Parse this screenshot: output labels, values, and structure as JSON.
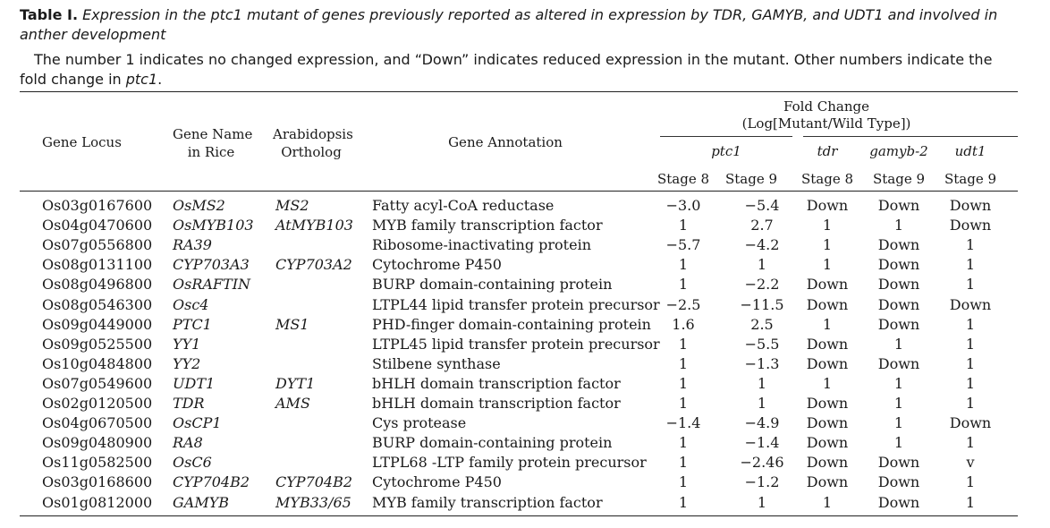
{
  "caption": {
    "label": "Table I.",
    "title": "Expression in the ptc1 mutant of genes previously reported as altered in expression by TDR, GAMYB, and UDT1 and involved in anther development",
    "note_main": "The number 1 indicates no changed expression, and “Down” indicates reduced expression in the mutant. Other numbers indicate the fold change in ",
    "note_italic": "ptc1",
    "note_end": "."
  },
  "header": {
    "gene_locus": "Gene Locus",
    "gene_name_line1": "Gene Name",
    "gene_name_line2": "in Rice",
    "ortholog_line1": "Arabidopsis",
    "ortholog_line2": "Ortholog",
    "annotation": "Gene Annotation",
    "fold_line1": "Fold Change",
    "fold_line2": "(Log[Mutant/Wild Type])",
    "ptc1": "ptc1",
    "tdr": "tdr",
    "gamyb2": "gamyb-2",
    "udt1": "udt1",
    "stage_ptc1_a": "Stage 8",
    "stage_ptc1_b": "Stage 9",
    "stage_tdr": "Stage 8",
    "stage_gamyb": "Stage 9",
    "stage_udt1": "Stage 9"
  },
  "rows": [
    {
      "locus": "Os03g0167600",
      "name": "OsMS2",
      "ortholog": "MS2",
      "annotation": "Fatty acyl-CoA reductase",
      "ptc1_s8": "−3.0",
      "ptc1_s9": "−5.4",
      "tdr": "Down",
      "gamyb": "Down",
      "udt1": "Down"
    },
    {
      "locus": "Os04g0470600",
      "name": "OsMYB103",
      "ortholog": "AtMYB103",
      "annotation": "MYB family transcription factor",
      "ptc1_s8": "1",
      "ptc1_s9": "2.7",
      "tdr": "1",
      "gamyb": "1",
      "udt1": "Down"
    },
    {
      "locus": "Os07g0556800",
      "name": "RA39",
      "ortholog": "",
      "annotation": "Ribosome-inactivating protein",
      "ptc1_s8": "−5.7",
      "ptc1_s9": "−4.2",
      "tdr": "1",
      "gamyb": "Down",
      "udt1": "1"
    },
    {
      "locus": "Os08g0131100",
      "name": "CYP703A3",
      "ortholog": "CYP703A2",
      "annotation": "Cytochrome P450",
      "ptc1_s8": "1",
      "ptc1_s9": "1",
      "tdr": "1",
      "gamyb": "Down",
      "udt1": "1"
    },
    {
      "locus": "Os08g0496800",
      "name": "OsRAFTIN",
      "ortholog": "",
      "annotation": "BURP domain-containing protein",
      "ptc1_s8": "1",
      "ptc1_s9": "−2.2",
      "tdr": "Down",
      "gamyb": "Down",
      "udt1": "1"
    },
    {
      "locus": "Os08g0546300",
      "name": "Osc4",
      "ortholog": "",
      "annotation": "LTPL44 lipid transfer protein precursor",
      "ptc1_s8": "−2.5",
      "ptc1_s9": "−11.5",
      "tdr": "Down",
      "gamyb": "Down",
      "udt1": "Down"
    },
    {
      "locus": "Os09g0449000",
      "name": "PTC1",
      "ortholog": "MS1",
      "annotation": "PHD-finger domain-containing protein",
      "ptc1_s8": "1.6",
      "ptc1_s9": "2.5",
      "tdr": "1",
      "gamyb": "Down",
      "udt1": "1"
    },
    {
      "locus": "Os09g0525500",
      "name": "YY1",
      "ortholog": "",
      "annotation": "LTPL45 lipid transfer protein precursor",
      "ptc1_s8": "1",
      "ptc1_s9": "−5.5",
      "tdr": "Down",
      "gamyb": "1",
      "udt1": "1"
    },
    {
      "locus": "Os10g0484800",
      "name": "YY2",
      "ortholog": "",
      "annotation": "Stilbene synthase",
      "ptc1_s8": "1",
      "ptc1_s9": "−1.3",
      "tdr": "Down",
      "gamyb": "Down",
      "udt1": "1"
    },
    {
      "locus": "Os07g0549600",
      "name": "UDT1",
      "ortholog": "DYT1",
      "annotation": "bHLH domain transcription factor",
      "ptc1_s8": "1",
      "ptc1_s9": "1",
      "tdr": "1",
      "gamyb": "1",
      "udt1": "1"
    },
    {
      "locus": "Os02g0120500",
      "name": "TDR",
      "ortholog": "AMS",
      "annotation": "bHLH domain transcription factor",
      "ptc1_s8": "1",
      "ptc1_s9": "1",
      "tdr": "Down",
      "gamyb": "1",
      "udt1": "1"
    },
    {
      "locus": "Os04g0670500",
      "name": "OsCP1",
      "ortholog": "",
      "annotation": "Cys protease",
      "ptc1_s8": "−1.4",
      "ptc1_s9": "−4.9",
      "tdr": "Down",
      "gamyb": "1",
      "udt1": "Down"
    },
    {
      "locus": "Os09g0480900",
      "name": "RA8",
      "ortholog": "",
      "annotation": "BURP domain-containing protein",
      "ptc1_s8": "1",
      "ptc1_s9": "−1.4",
      "tdr": "Down",
      "gamyb": "1",
      "udt1": "1"
    },
    {
      "locus": "Os11g0582500",
      "name": "OsC6",
      "ortholog": "",
      "annotation": "LTPL68 -LTP family protein precursor",
      "ptc1_s8": "1",
      "ptc1_s9": "−2.46",
      "tdr": "Down",
      "gamyb": "Down",
      "udt1": "v"
    },
    {
      "locus": "Os03g0168600",
      "name": "CYP704B2",
      "ortholog": "CYP704B2",
      "annotation": "Cytochrome P450",
      "ptc1_s8": "1",
      "ptc1_s9": "−1.2",
      "tdr": "Down",
      "gamyb": "Down",
      "udt1": "1"
    },
    {
      "locus": "Os01g0812000",
      "name": "GAMYB",
      "ortholog": "MYB33/65",
      "annotation": "MYB family transcription factor",
      "ptc1_s8": "1",
      "ptc1_s9": "1",
      "tdr": "1",
      "gamyb": "Down",
      "udt1": "1"
    }
  ]
}
